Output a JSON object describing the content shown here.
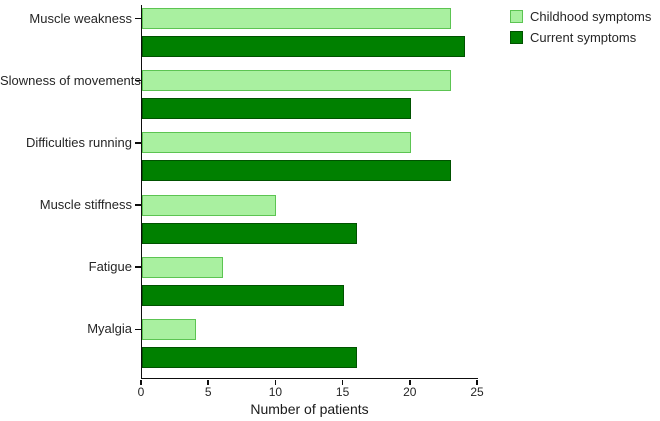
{
  "chart_data": {
    "type": "bar",
    "orientation": "horizontal",
    "title": "",
    "xlabel": "Number of patients",
    "ylabel": "",
    "xlim": [
      0,
      25
    ],
    "xticks": [
      0,
      5,
      10,
      15,
      20,
      25
    ],
    "grid": false,
    "legend_position": "top-right",
    "categories": [
      "Muscle weakness",
      "Slowness of movements",
      "Difficulties running",
      "Muscle stiffness",
      "Fatigue",
      "Myalgia"
    ],
    "series": [
      {
        "name": "Childhood symptoms",
        "color": "#a9f0a0",
        "edge_color": "#5cc452",
        "values": [
          23,
          23,
          20,
          10,
          6,
          4
        ]
      },
      {
        "name": "Current symptoms",
        "color": "#008000",
        "edge_color": "#005200",
        "values": [
          24,
          20,
          23,
          16,
          15,
          16
        ]
      }
    ]
  }
}
